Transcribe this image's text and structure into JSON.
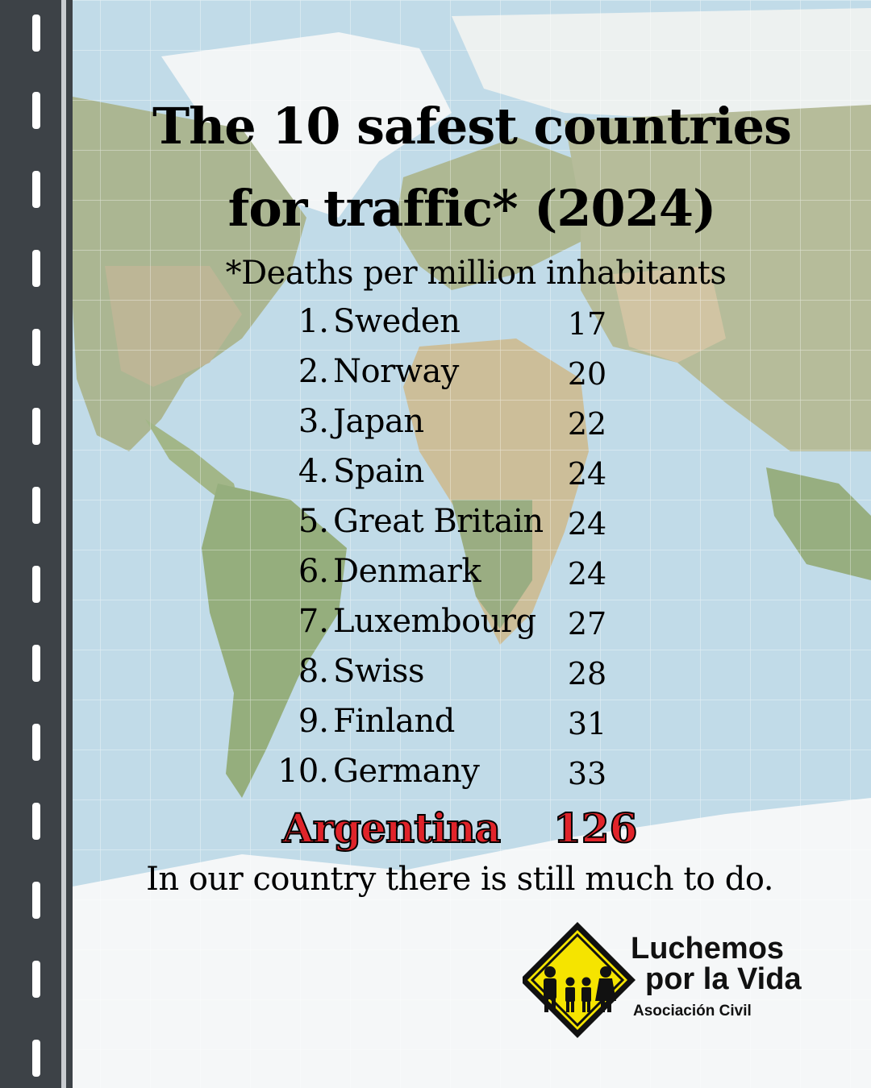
{
  "title_line1": "The 10 safest countries",
  "title_line2": "for traffic* (2024)",
  "subtitle": "*Deaths per million inhabitants",
  "chart_data": {
    "type": "table",
    "title": "The 10 safest countries for traffic* (2024)",
    "unit": "*Deaths per million inhabitants",
    "rows": [
      {
        "rank": "1.",
        "country": "Sweden",
        "value": 17
      },
      {
        "rank": "2.",
        "country": "Norway",
        "value": 20
      },
      {
        "rank": "3.",
        "country": "Japan",
        "value": 22
      },
      {
        "rank": "4.",
        "country": "Spain",
        "value": 24
      },
      {
        "rank": "5.",
        "country": "Great Britain",
        "value": 24
      },
      {
        "rank": "6.",
        "country": "Denmark",
        "value": 24
      },
      {
        "rank": "7.",
        "country": "Luxembourg",
        "value": 27
      },
      {
        "rank": "8.",
        "country": "Swiss",
        "value": 28
      },
      {
        "rank": "9.",
        "country": "Finland",
        "value": 31
      },
      {
        "rank": "10.",
        "country": "Germany",
        "value": 33
      }
    ],
    "highlight": {
      "country": "Argentina",
      "value": 126,
      "color": "#e0242a"
    }
  },
  "footer": "In our country there is still much to do.",
  "logo": {
    "name_line1": "Luchemos",
    "name_line2": "por la Vida",
    "tagline": "Asociación Civil",
    "sign_color": "#f5e400",
    "icon": "family-road-sign-icon"
  },
  "colors": {
    "ocean": "#a9cde0",
    "road": "#3d4247",
    "lane_marking": "#ffffff"
  }
}
